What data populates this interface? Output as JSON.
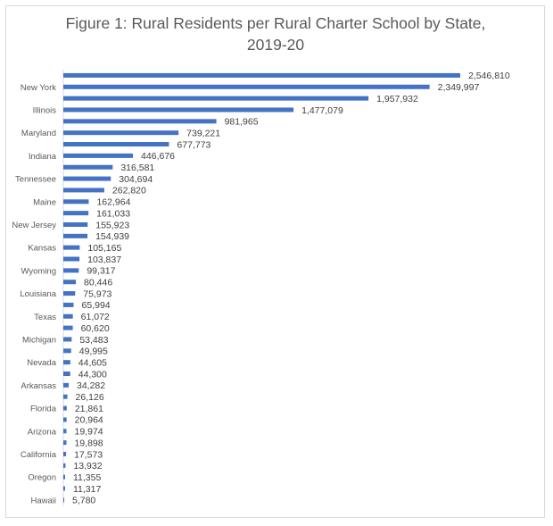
{
  "chart_data": {
    "type": "bar",
    "orientation": "horizontal",
    "title_line1": "Figure 1: Rural Residents per Rural Charter School by State,",
    "title_line2": "2019-20",
    "xlabel": "",
    "ylabel": "",
    "grid": false,
    "legend": "none",
    "bar_color": "#4472C4",
    "categories": [
      "",
      "New York",
      "",
      "Illinois",
      "",
      "Maryland",
      "",
      "Indiana",
      "",
      "Tennessee",
      "",
      "Maine",
      "",
      "New Jersey",
      "",
      "Kansas",
      "",
      "Wyoming",
      "",
      "Louisiana",
      "",
      "Texas",
      "",
      "Michigan",
      "",
      "Nevada",
      "",
      "Arkansas",
      "",
      "Florida",
      "",
      "Arizona",
      "",
      "California",
      "",
      "Oregon",
      "",
      "Hawaii"
    ],
    "values": [
      2546810,
      2349997,
      1957932,
      1477079,
      981965,
      739221,
      677773,
      446676,
      316581,
      304694,
      262820,
      162964,
      161033,
      155923,
      154939,
      105165,
      103837,
      99317,
      80446,
      75973,
      65994,
      61072,
      60620,
      53483,
      49995,
      44605,
      44300,
      34282,
      26126,
      21861,
      20964,
      19974,
      19898,
      17573,
      13932,
      11355,
      11317,
      5780
    ],
    "value_labels": [
      "2,546,810",
      "2,349,997",
      "1,957,932",
      "1,477,079",
      "981,965",
      "739,221",
      "677,773",
      "446,676",
      "316,581",
      "304,694",
      "262,820",
      "162,964",
      "161,033",
      "155,923",
      "154,939",
      "105,165",
      "103,837",
      "99,317",
      "80,446",
      "75,973",
      "65,994",
      "61,072",
      "60,620",
      "53,483",
      "49,995",
      "44,605",
      "44,300",
      "34,282",
      "26,126",
      "21,861",
      "20,964",
      "19,974",
      "19,898",
      "17,573",
      "13,932",
      "11,355",
      "11,317",
      "5,780"
    ]
  }
}
